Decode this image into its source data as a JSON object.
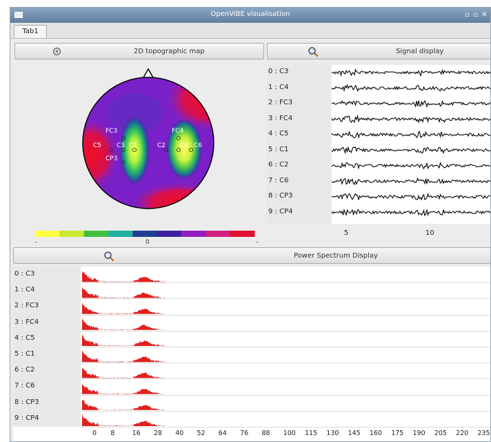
{
  "window": {
    "title": "OpenViBE visualisation",
    "controls": [
      "minimize-icon",
      "maximize-icon",
      "close-icon"
    ]
  },
  "tabs": [
    {
      "label": "Tab1"
    }
  ],
  "topomap": {
    "button_label": "2D topographic map",
    "button_icon": "settings-icon",
    "electrodes_left": [
      "FC3",
      "C5",
      "C3",
      "C1",
      "CP3"
    ],
    "electrodes_right": [
      "FC4",
      "C2",
      "C4",
      "C6"
    ],
    "colorbar": {
      "left_label": "-",
      "center_label": "0",
      "right_label": "-",
      "colors": [
        "#ffff40",
        "#c8e830",
        "#40c040",
        "#20b0a0",
        "#204090",
        "#4020a0",
        "#9020c0",
        "#d02080",
        "#e01030"
      ]
    }
  },
  "signal": {
    "button_label": "Signal display",
    "button_icon": "zoom-icon",
    "channels": [
      "0 : C3",
      "1 : C4",
      "2 : FC3",
      "3 : FC4",
      "4 : C5",
      "5 : C1",
      "6 : C2",
      "7 : C6",
      "8 : CP3",
      "9 : CP4"
    ],
    "x_ticks": [
      "5",
      "10"
    ]
  },
  "spectrum": {
    "button_label": "Power Spectrum Display",
    "button_icon": "zoom-icon",
    "channels": [
      "0 : C3",
      "1 : C4",
      "2 : FC3",
      "3 : FC4",
      "4 : C5",
      "5 : C1",
      "6 : C2",
      "7 : C6",
      "8 : CP3",
      "9 : CP4"
    ],
    "x_ticks": [
      "0",
      "8",
      "16",
      "28",
      "40",
      "52",
      "64",
      "76",
      "88",
      "100",
      "115",
      "130",
      "145",
      "160",
      "175",
      "190",
      "205",
      "220",
      "235"
    ],
    "bar_color": "#e02020"
  }
}
